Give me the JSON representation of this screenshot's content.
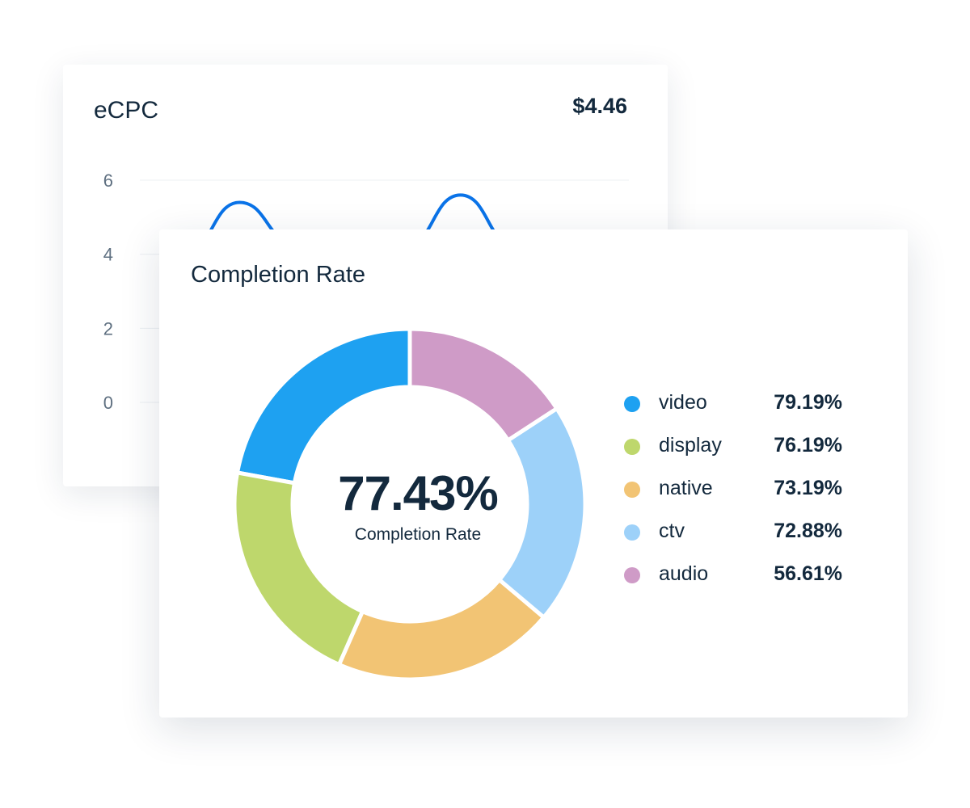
{
  "ecpc_card": {
    "title": "eCPC",
    "value": "$4.46",
    "chart_data": {
      "type": "line",
      "y_ticks": [
        "6",
        "4",
        "2",
        "0"
      ],
      "ylim": [
        0,
        6
      ],
      "grid": true,
      "color": "#0a73e8",
      "values": [
        4.0,
        5.4,
        4.3,
        4.6,
        4.2,
        5.6,
        4.2
      ]
    }
  },
  "completion_card": {
    "title": "Completion Rate",
    "center_value": "77.43%",
    "center_label": "Completion Rate",
    "chart_data": {
      "type": "pie",
      "donut": true,
      "categories": [
        "video",
        "display",
        "native",
        "ctv",
        "audio"
      ],
      "values": [
        79.19,
        76.19,
        73.19,
        72.88,
        56.61
      ],
      "labels": [
        "79.19%",
        "76.19%",
        "73.19%",
        "72.88%",
        "56.61%"
      ],
      "colors": [
        "#1ea1f1",
        "#bed76c",
        "#f2c474",
        "#9dd1f9",
        "#cf9bc7"
      ],
      "legend": "right"
    }
  }
}
